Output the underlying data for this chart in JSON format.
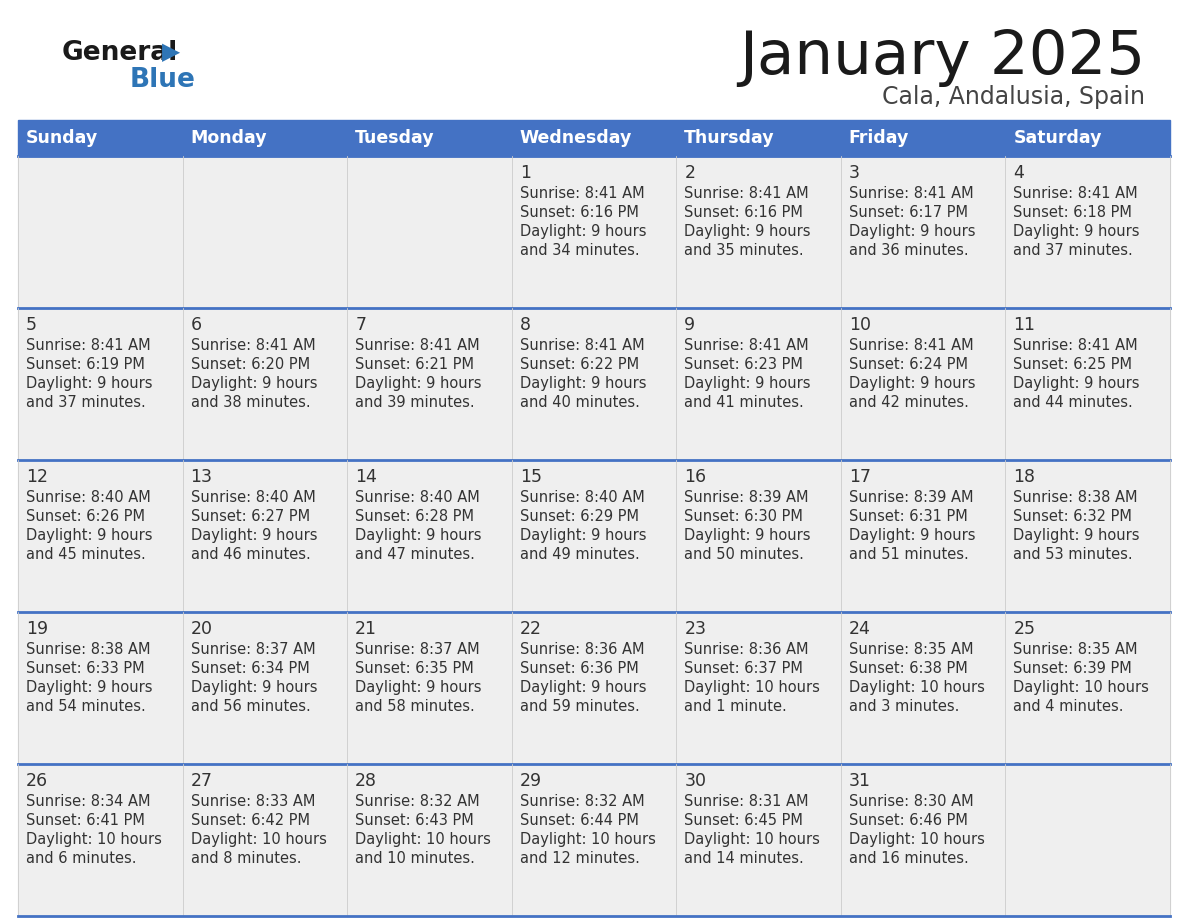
{
  "title": "January 2025",
  "subtitle": "Cala, Andalusia, Spain",
  "header_color": "#4472C4",
  "header_text_color": "#FFFFFF",
  "weekdays": [
    "Sunday",
    "Monday",
    "Tuesday",
    "Wednesday",
    "Thursday",
    "Friday",
    "Saturday"
  ],
  "background_color": "#FFFFFF",
  "cell_bg_color": "#EFEFEF",
  "separator_color": "#4472C4",
  "text_color": "#333333",
  "days": [
    {
      "day": 1,
      "col": 3,
      "row": 0,
      "sunrise": "8:41 AM",
      "sunset": "6:16 PM",
      "daylight_line1": "Daylight: 9 hours",
      "daylight_line2": "and 34 minutes."
    },
    {
      "day": 2,
      "col": 4,
      "row": 0,
      "sunrise": "8:41 AM",
      "sunset": "6:16 PM",
      "daylight_line1": "Daylight: 9 hours",
      "daylight_line2": "and 35 minutes."
    },
    {
      "day": 3,
      "col": 5,
      "row": 0,
      "sunrise": "8:41 AM",
      "sunset": "6:17 PM",
      "daylight_line1": "Daylight: 9 hours",
      "daylight_line2": "and 36 minutes."
    },
    {
      "day": 4,
      "col": 6,
      "row": 0,
      "sunrise": "8:41 AM",
      "sunset": "6:18 PM",
      "daylight_line1": "Daylight: 9 hours",
      "daylight_line2": "and 37 minutes."
    },
    {
      "day": 5,
      "col": 0,
      "row": 1,
      "sunrise": "8:41 AM",
      "sunset": "6:19 PM",
      "daylight_line1": "Daylight: 9 hours",
      "daylight_line2": "and 37 minutes."
    },
    {
      "day": 6,
      "col": 1,
      "row": 1,
      "sunrise": "8:41 AM",
      "sunset": "6:20 PM",
      "daylight_line1": "Daylight: 9 hours",
      "daylight_line2": "and 38 minutes."
    },
    {
      "day": 7,
      "col": 2,
      "row": 1,
      "sunrise": "8:41 AM",
      "sunset": "6:21 PM",
      "daylight_line1": "Daylight: 9 hours",
      "daylight_line2": "and 39 minutes."
    },
    {
      "day": 8,
      "col": 3,
      "row": 1,
      "sunrise": "8:41 AM",
      "sunset": "6:22 PM",
      "daylight_line1": "Daylight: 9 hours",
      "daylight_line2": "and 40 minutes."
    },
    {
      "day": 9,
      "col": 4,
      "row": 1,
      "sunrise": "8:41 AM",
      "sunset": "6:23 PM",
      "daylight_line1": "Daylight: 9 hours",
      "daylight_line2": "and 41 minutes."
    },
    {
      "day": 10,
      "col": 5,
      "row": 1,
      "sunrise": "8:41 AM",
      "sunset": "6:24 PM",
      "daylight_line1": "Daylight: 9 hours",
      "daylight_line2": "and 42 minutes."
    },
    {
      "day": 11,
      "col": 6,
      "row": 1,
      "sunrise": "8:41 AM",
      "sunset": "6:25 PM",
      "daylight_line1": "Daylight: 9 hours",
      "daylight_line2": "and 44 minutes."
    },
    {
      "day": 12,
      "col": 0,
      "row": 2,
      "sunrise": "8:40 AM",
      "sunset": "6:26 PM",
      "daylight_line1": "Daylight: 9 hours",
      "daylight_line2": "and 45 minutes."
    },
    {
      "day": 13,
      "col": 1,
      "row": 2,
      "sunrise": "8:40 AM",
      "sunset": "6:27 PM",
      "daylight_line1": "Daylight: 9 hours",
      "daylight_line2": "and 46 minutes."
    },
    {
      "day": 14,
      "col": 2,
      "row": 2,
      "sunrise": "8:40 AM",
      "sunset": "6:28 PM",
      "daylight_line1": "Daylight: 9 hours",
      "daylight_line2": "and 47 minutes."
    },
    {
      "day": 15,
      "col": 3,
      "row": 2,
      "sunrise": "8:40 AM",
      "sunset": "6:29 PM",
      "daylight_line1": "Daylight: 9 hours",
      "daylight_line2": "and 49 minutes."
    },
    {
      "day": 16,
      "col": 4,
      "row": 2,
      "sunrise": "8:39 AM",
      "sunset": "6:30 PM",
      "daylight_line1": "Daylight: 9 hours",
      "daylight_line2": "and 50 minutes."
    },
    {
      "day": 17,
      "col": 5,
      "row": 2,
      "sunrise": "8:39 AM",
      "sunset": "6:31 PM",
      "daylight_line1": "Daylight: 9 hours",
      "daylight_line2": "and 51 minutes."
    },
    {
      "day": 18,
      "col": 6,
      "row": 2,
      "sunrise": "8:38 AM",
      "sunset": "6:32 PM",
      "daylight_line1": "Daylight: 9 hours",
      "daylight_line2": "and 53 minutes."
    },
    {
      "day": 19,
      "col": 0,
      "row": 3,
      "sunrise": "8:38 AM",
      "sunset": "6:33 PM",
      "daylight_line1": "Daylight: 9 hours",
      "daylight_line2": "and 54 minutes."
    },
    {
      "day": 20,
      "col": 1,
      "row": 3,
      "sunrise": "8:37 AM",
      "sunset": "6:34 PM",
      "daylight_line1": "Daylight: 9 hours",
      "daylight_line2": "and 56 minutes."
    },
    {
      "day": 21,
      "col": 2,
      "row": 3,
      "sunrise": "8:37 AM",
      "sunset": "6:35 PM",
      "daylight_line1": "Daylight: 9 hours",
      "daylight_line2": "and 58 minutes."
    },
    {
      "day": 22,
      "col": 3,
      "row": 3,
      "sunrise": "8:36 AM",
      "sunset": "6:36 PM",
      "daylight_line1": "Daylight: 9 hours",
      "daylight_line2": "and 59 minutes."
    },
    {
      "day": 23,
      "col": 4,
      "row": 3,
      "sunrise": "8:36 AM",
      "sunset": "6:37 PM",
      "daylight_line1": "Daylight: 10 hours",
      "daylight_line2": "and 1 minute."
    },
    {
      "day": 24,
      "col": 5,
      "row": 3,
      "sunrise": "8:35 AM",
      "sunset": "6:38 PM",
      "daylight_line1": "Daylight: 10 hours",
      "daylight_line2": "and 3 minutes."
    },
    {
      "day": 25,
      "col": 6,
      "row": 3,
      "sunrise": "8:35 AM",
      "sunset": "6:39 PM",
      "daylight_line1": "Daylight: 10 hours",
      "daylight_line2": "and 4 minutes."
    },
    {
      "day": 26,
      "col": 0,
      "row": 4,
      "sunrise": "8:34 AM",
      "sunset": "6:41 PM",
      "daylight_line1": "Daylight: 10 hours",
      "daylight_line2": "and 6 minutes."
    },
    {
      "day": 27,
      "col": 1,
      "row": 4,
      "sunrise": "8:33 AM",
      "sunset": "6:42 PM",
      "daylight_line1": "Daylight: 10 hours",
      "daylight_line2": "and 8 minutes."
    },
    {
      "day": 28,
      "col": 2,
      "row": 4,
      "sunrise": "8:32 AM",
      "sunset": "6:43 PM",
      "daylight_line1": "Daylight: 10 hours",
      "daylight_line2": "and 10 minutes."
    },
    {
      "day": 29,
      "col": 3,
      "row": 4,
      "sunrise": "8:32 AM",
      "sunset": "6:44 PM",
      "daylight_line1": "Daylight: 10 hours",
      "daylight_line2": "and 12 minutes."
    },
    {
      "day": 30,
      "col": 4,
      "row": 4,
      "sunrise": "8:31 AM",
      "sunset": "6:45 PM",
      "daylight_line1": "Daylight: 10 hours",
      "daylight_line2": "and 14 minutes."
    },
    {
      "day": 31,
      "col": 5,
      "row": 4,
      "sunrise": "8:30 AM",
      "sunset": "6:46 PM",
      "daylight_line1": "Daylight: 10 hours",
      "daylight_line2": "and 16 minutes."
    }
  ]
}
